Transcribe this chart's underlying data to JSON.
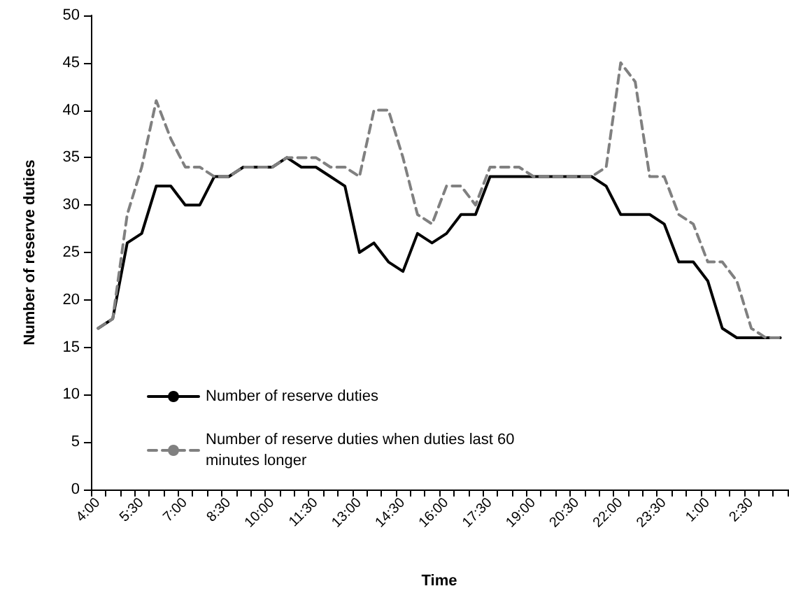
{
  "chart_data": {
    "type": "line",
    "xlabel": "Time",
    "ylabel": "Number of reserve duties",
    "categories": [
      "4:00",
      null,
      null,
      "5:30",
      null,
      null,
      "7:00",
      null,
      null,
      "8:30",
      null,
      null,
      "10:00",
      null,
      null,
      "11:30",
      null,
      null,
      "13:00",
      null,
      null,
      "14:30",
      null,
      null,
      "16:00",
      null,
      null,
      "17:30",
      null,
      null,
      "19:00",
      null,
      null,
      "20:30",
      null,
      null,
      "22:00",
      null,
      null,
      "23:30",
      null,
      null,
      "1:00",
      null,
      null,
      "2:30",
      null,
      null
    ],
    "series": [
      {
        "name": "Number of reserve duties",
        "color": "#000000",
        "line_style": "solid",
        "values": [
          17,
          18,
          26,
          27,
          32,
          32,
          30,
          30,
          33,
          33,
          34,
          34,
          34,
          35,
          34,
          34,
          33,
          32,
          25,
          26,
          24,
          23,
          27,
          26,
          27,
          29,
          29,
          33,
          33,
          33,
          33,
          33,
          33,
          33,
          33,
          32,
          29,
          29,
          29,
          28,
          24,
          24,
          22,
          17,
          16,
          16,
          16,
          16
        ]
      },
      {
        "name": "Number of reserve duties when duties last 60 minutes longer",
        "color": "#808080",
        "line_style": "dashed",
        "values": [
          17,
          18,
          29,
          34,
          41,
          37,
          34,
          34,
          33,
          33,
          34,
          34,
          34,
          35,
          35,
          35,
          34,
          34,
          33,
          40,
          40,
          35,
          29,
          28,
          32,
          32,
          30,
          34,
          34,
          34,
          33,
          33,
          33,
          33,
          33,
          34,
          45,
          43,
          33,
          33,
          29,
          28,
          24,
          24,
          22,
          17,
          16,
          16
        ]
      }
    ],
    "ylim": [
      0,
      50
    ],
    "yticks": [
      0,
      5,
      10,
      15,
      20,
      25,
      30,
      35,
      40,
      45,
      50
    ],
    "grid": false,
    "legend": "bottom left",
    "marker": "none"
  }
}
